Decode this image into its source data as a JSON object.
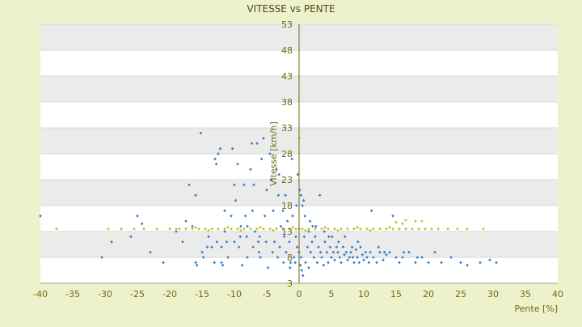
{
  "chart_data": {
    "type": "scatter",
    "title": "VITESSE vs PENTE",
    "xlabel": "Pente [%]",
    "ylabel": "Vitesse [km/h]",
    "xlim": [
      -40,
      40
    ],
    "ylim": [
      3,
      53
    ],
    "x_ticks": [
      "-40",
      "-35",
      "-30",
      "-25",
      "-20",
      "-15",
      "-10",
      "-5",
      "0",
      "5",
      "10",
      "15",
      "20",
      "25",
      "30",
      "35",
      "40"
    ],
    "y_ticks": [
      "3",
      "8",
      "13",
      "18",
      "23",
      "28",
      "33",
      "38",
      "43",
      "48",
      "53"
    ],
    "colors": {
      "series_blue": "#3a7fd0",
      "series_yellow": "#c8c020",
      "band": "#ebebeb",
      "axis_text": "#6b6b10"
    },
    "series": [
      {
        "color": "#3a7fd0",
        "points": [
          [
            -40,
            16
          ],
          [
            -30.5,
            8
          ],
          [
            -29,
            11
          ],
          [
            -27.5,
            13.5
          ],
          [
            -26,
            12
          ],
          [
            -25,
            16
          ],
          [
            -24.3,
            14.5
          ],
          [
            -23,
            9
          ],
          [
            -21,
            7
          ],
          [
            -17.5,
            15
          ],
          [
            -17,
            22
          ],
          [
            -16.5,
            14
          ],
          [
            -16,
            20
          ],
          [
            -16,
            7
          ],
          [
            -15.8,
            6.5
          ],
          [
            -15.2,
            32
          ],
          [
            -15,
            9
          ],
          [
            -14.8,
            8
          ],
          [
            -14,
            12
          ],
          [
            -13.5,
            10
          ],
          [
            -13,
            27
          ],
          [
            -12.8,
            26
          ],
          [
            -12.5,
            28
          ],
          [
            -12.2,
            29
          ],
          [
            -12,
            10
          ],
          [
            -12,
            7
          ],
          [
            -11.8,
            6.5
          ],
          [
            -11.5,
            17
          ],
          [
            -11.5,
            13
          ],
          [
            -11,
            8
          ],
          [
            -10.5,
            16
          ],
          [
            -10.3,
            29
          ],
          [
            -10,
            22
          ],
          [
            -10,
            11
          ],
          [
            -9.8,
            19
          ],
          [
            -9.5,
            26
          ],
          [
            -9.3,
            10
          ],
          [
            -9,
            14
          ],
          [
            -8.8,
            6.5
          ],
          [
            -8.5,
            22
          ],
          [
            -8.3,
            16
          ],
          [
            -8,
            14
          ],
          [
            -8,
            8
          ],
          [
            -7.5,
            25
          ],
          [
            -7.3,
            30
          ],
          [
            -7.2,
            17
          ],
          [
            -7,
            22
          ],
          [
            -6.8,
            13
          ],
          [
            -6.5,
            30
          ],
          [
            -6.3,
            11
          ],
          [
            -6.2,
            9
          ],
          [
            -6,
            8
          ],
          [
            -5.8,
            27
          ],
          [
            -5.5,
            31
          ],
          [
            -5.3,
            16
          ],
          [
            -5,
            21
          ],
          [
            -4.8,
            6
          ],
          [
            -4.5,
            28
          ],
          [
            -4.3,
            23
          ],
          [
            -4,
            17
          ],
          [
            -3.8,
            11
          ],
          [
            -3.5,
            25
          ],
          [
            -3.2,
            20
          ],
          [
            -3,
            10
          ],
          [
            -2.8,
            14
          ],
          [
            -2.5,
            17
          ],
          [
            -2.3,
            12
          ],
          [
            -2,
            9
          ],
          [
            -1.8,
            15
          ],
          [
            -1.5,
            11
          ],
          [
            -1.3,
            7
          ],
          [
            -1,
            16
          ],
          [
            -0.8,
            8
          ],
          [
            -0.5,
            12
          ],
          [
            -0.3,
            10
          ],
          [
            0,
            9
          ],
          [
            0.3,
            8
          ],
          [
            0.5,
            18
          ],
          [
            0.8,
            12
          ],
          [
            1,
            7
          ],
          [
            1.3,
            10
          ],
          [
            1.5,
            6
          ],
          [
            1.8,
            9
          ],
          [
            2,
            11
          ],
          [
            2.3,
            8
          ],
          [
            2.5,
            12
          ],
          [
            2.8,
            7
          ],
          [
            3,
            10
          ],
          [
            3.3,
            9
          ],
          [
            3.5,
            8
          ],
          [
            3.8,
            6.5
          ],
          [
            4,
            11
          ],
          [
            4.3,
            9
          ],
          [
            4.5,
            7
          ],
          [
            4.8,
            10
          ],
          [
            5,
            8
          ],
          [
            5.3,
            9
          ],
          [
            5.5,
            7.5
          ],
          [
            5.8,
            10
          ],
          [
            6,
            9
          ],
          [
            6.3,
            8
          ],
          [
            6.5,
            7
          ],
          [
            6.8,
            10
          ],
          [
            7,
            8.5
          ],
          [
            7.3,
            9
          ],
          [
            7.5,
            7.5
          ],
          [
            7.8,
            8
          ],
          [
            8,
            9
          ],
          [
            8.3,
            8
          ],
          [
            8.5,
            7
          ],
          [
            8.8,
            9.5
          ],
          [
            9,
            8
          ],
          [
            9.3,
            7
          ],
          [
            9.5,
            10
          ],
          [
            9.8,
            8.5
          ],
          [
            10,
            7.5
          ],
          [
            10.3,
            9
          ],
          [
            10.5,
            8
          ],
          [
            10.8,
            7
          ],
          [
            11,
            9
          ],
          [
            11.5,
            8
          ],
          [
            12,
            7
          ],
          [
            12.5,
            9
          ],
          [
            13,
            7.5
          ],
          [
            13.5,
            8.5
          ],
          [
            14,
            9
          ],
          [
            14.5,
            16
          ],
          [
            15,
            8
          ],
          [
            15.5,
            7
          ],
          [
            16,
            8
          ],
          [
            17,
            9
          ],
          [
            18,
            7
          ],
          [
            19,
            8
          ],
          [
            20,
            7
          ],
          [
            21,
            9
          ],
          [
            22,
            7
          ],
          [
            23.5,
            8
          ],
          [
            25,
            7
          ],
          [
            26,
            6.5
          ],
          [
            28,
            7
          ],
          [
            29.5,
            7.5
          ],
          [
            30.5,
            7
          ],
          [
            0.2,
            6.5
          ],
          [
            0.4,
            5.5
          ],
          [
            0.6,
            4.5
          ],
          [
            1.5,
            13
          ],
          [
            2.1,
            14
          ],
          [
            0.1,
            21
          ],
          [
            0.3,
            20
          ],
          [
            -0.2,
            24
          ],
          [
            0.7,
            19
          ],
          [
            3.2,
            20
          ],
          [
            3.9,
            13
          ],
          [
            5.1,
            12
          ],
          [
            6.1,
            11
          ],
          [
            7.1,
            12
          ],
          [
            8.2,
            10
          ],
          [
            9.1,
            11
          ],
          [
            11.2,
            17
          ],
          [
            -1.1,
            27
          ],
          [
            -2.1,
            20
          ],
          [
            -3.1,
            24
          ],
          [
            -0.4,
            18
          ],
          [
            0.9,
            16
          ],
          [
            1.7,
            15
          ],
          [
            2.6,
            14
          ],
          [
            4.6,
            12
          ],
          [
            12.3,
            10
          ],
          [
            13.2,
            9
          ],
          [
            16.2,
            9
          ],
          [
            18.3,
            8
          ],
          [
            -12.7,
            11
          ],
          [
            -11.2,
            11
          ],
          [
            -9.1,
            12
          ],
          [
            -8.1,
            12
          ],
          [
            -7.1,
            10
          ],
          [
            -6.1,
            12
          ],
          [
            -5.1,
            11
          ],
          [
            -4.1,
            9
          ],
          [
            -3.3,
            8
          ],
          [
            -2.4,
            7
          ],
          [
            -1.4,
            6
          ],
          [
            -0.6,
            7
          ],
          [
            -19,
            13
          ],
          [
            -18,
            11
          ],
          [
            -14.2,
            10
          ],
          [
            -13.1,
            7
          ]
        ]
      },
      {
        "color": "#c8c020",
        "points": [
          [
            -37.5,
            13.5
          ],
          [
            -29.5,
            13.5
          ],
          [
            -27.5,
            13.5
          ],
          [
            -25.5,
            13.5
          ],
          [
            -24,
            13.5
          ],
          [
            -22,
            13.5
          ],
          [
            -18.5,
            13.5
          ],
          [
            -17.5,
            13.5
          ],
          [
            -16.5,
            13.5
          ],
          [
            -15.5,
            13.5
          ],
          [
            -14.5,
            13.5
          ],
          [
            -13.5,
            13.5
          ],
          [
            -12.5,
            13.5
          ],
          [
            -11.5,
            13.5
          ],
          [
            -10.5,
            13.5
          ],
          [
            -9.5,
            13.5
          ],
          [
            -8.5,
            13.5
          ],
          [
            -7.5,
            13.5
          ],
          [
            -6.5,
            13.5
          ],
          [
            -5.5,
            13.5
          ],
          [
            -4.5,
            13.5
          ],
          [
            -3.5,
            13.5
          ],
          [
            -2.5,
            13.5
          ],
          [
            -1.5,
            13.5
          ],
          [
            -0.5,
            13.5
          ],
          [
            0.5,
            13.5
          ],
          [
            1.5,
            13.5
          ],
          [
            2.5,
            13.5
          ],
          [
            3.5,
            13.5
          ],
          [
            4.5,
            13.5
          ],
          [
            5.5,
            13.5
          ],
          [
            6.5,
            13.5
          ],
          [
            7.5,
            13.5
          ],
          [
            8.5,
            13.5
          ],
          [
            9.5,
            13.5
          ],
          [
            10.5,
            13.5
          ],
          [
            11.5,
            13.5
          ],
          [
            12.5,
            13.5
          ],
          [
            13.5,
            13.5
          ],
          [
            14.5,
            13.5
          ],
          [
            15.5,
            13.5
          ],
          [
            16.5,
            13.5
          ],
          [
            17.5,
            13.5
          ],
          [
            18.5,
            13.5
          ],
          [
            19.5,
            13.5
          ],
          [
            20.5,
            13.5
          ],
          [
            21.5,
            13.5
          ],
          [
            23,
            13.5
          ],
          [
            24.5,
            13.5
          ],
          [
            26,
            13.5
          ],
          [
            28.5,
            13.5
          ],
          [
            -20,
            13.5
          ],
          [
            -19,
            13.5
          ],
          [
            0,
            13.5
          ],
          [
            0,
            31
          ],
          [
            -16,
            13.8
          ],
          [
            -11,
            13.8
          ],
          [
            -6,
            13.8
          ],
          [
            -1,
            13.8
          ],
          [
            4,
            13.8
          ],
          [
            9,
            13.8
          ],
          [
            14,
            13.8
          ],
          [
            -14,
            13.2
          ],
          [
            -9,
            13.2
          ],
          [
            -4,
            13.2
          ],
          [
            1,
            13.2
          ],
          [
            6,
            13.2
          ],
          [
            11,
            13.2
          ],
          [
            16,
            14.5
          ],
          [
            18,
            15
          ],
          [
            19,
            15
          ],
          [
            15,
            14.8
          ],
          [
            16.5,
            15.2
          ]
        ]
      }
    ]
  }
}
